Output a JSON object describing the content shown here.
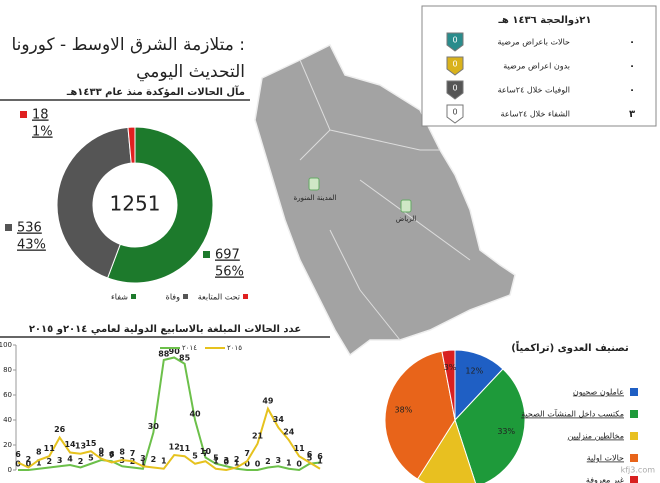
{
  "header": {
    "title": "متلازمة الشرق الاوسط - كورونا :",
    "subtitle": "التحديث اليومي"
  },
  "status": {
    "date": "٢١ذوالحجة ١٤٣٦ هـ",
    "rows": [
      {
        "label": "حالات باعراض مرضية",
        "badge": 0,
        "count": "٠",
        "color": "#2a8c8c"
      },
      {
        "label": "بدون اعراض مرضية",
        "badge": 0,
        "count": "٠",
        "color": "#d9b21c"
      },
      {
        "label": "الوفيات خلال ٢٤ساعة",
        "badge": 0,
        "count": "٠",
        "color": "#555555"
      },
      {
        "label": "الشفاء خلال ٢٤ساعة",
        "badge": 0,
        "count": "٣",
        "color": "#ffffff"
      }
    ]
  },
  "map": {
    "cities": [
      "المدينة المنورة",
      "الرياض"
    ]
  },
  "watermark": "kfj3.com",
  "chart_data": [
    {
      "type": "donut",
      "title": "مآل الحالات المؤكدة منذ عام ١٤٣٣هـ",
      "total": 1251,
      "categories": [
        "شفاء",
        "وفاة",
        "تحت المتابعة"
      ],
      "values": [
        697,
        536,
        18
      ],
      "shares": [
        {
          "value": 56,
          "label": "56%"
        },
        {
          "value": 43,
          "label": "43%"
        },
        {
          "value": 1,
          "label": "1%"
        }
      ],
      "colors": [
        "#1d7a2c",
        "#555555",
        "#e02020"
      ]
    },
    {
      "type": "line",
      "title": "عدد الحالات المبلغة بالاسابيع الدولية لعامي ٢٠١٤و ٢٠١٥",
      "ylim": [
        0,
        100
      ],
      "yticks": [
        0,
        20,
        40,
        60,
        80,
        100
      ],
      "series": [
        {
          "name": "٢٠١٤",
          "color": "#6cc04a",
          "values": [
            0,
            0,
            1,
            2,
            3,
            4,
            2,
            5,
            8,
            7,
            3,
            2,
            1,
            30,
            88,
            90,
            85,
            40,
            10,
            5,
            3,
            1,
            0,
            0,
            2,
            3,
            1,
            0,
            5,
            6
          ]
        },
        {
          "name": "٢٠١٥",
          "color": "#e6c21e",
          "values": [
            6,
            2,
            8,
            11,
            26,
            14,
            13,
            15,
            9,
            6,
            8,
            7,
            3,
            2,
            1,
            12,
            11,
            5,
            7,
            1,
            0,
            2,
            7,
            21,
            49,
            34,
            24,
            11,
            6,
            1
          ]
        }
      ]
    },
    {
      "type": "pie",
      "title": "تصنيف العدوى (تراكمياً)",
      "categories": [
        "عاملون صحيون",
        "مكتسب داخل المنشآت الصحية",
        "مخالطين منزليين",
        "حالات اولية",
        "غير معروفة"
      ],
      "values": [
        12,
        33,
        14,
        38,
        3
      ],
      "value_labels": [
        "12%",
        "33%",
        null,
        "38%",
        "3%"
      ],
      "colors": [
        "#1f5fc4",
        "#1e9a3a",
        "#e8c020",
        "#e8641a",
        "#d82020"
      ]
    }
  ]
}
